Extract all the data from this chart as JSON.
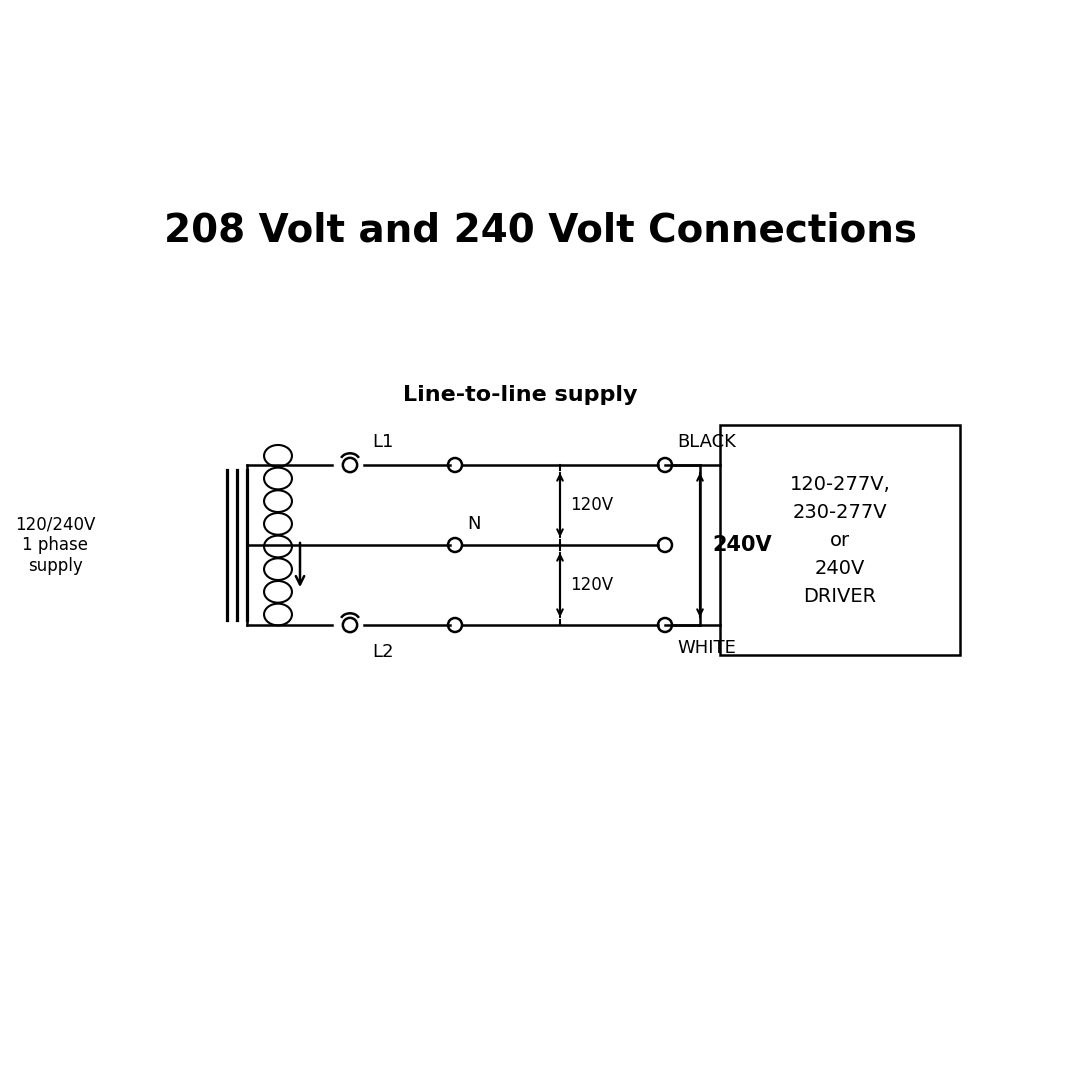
{
  "title": "208 Volt and 240 Volt Connections",
  "subtitle": "Line-to-line supply",
  "bg_color": "#ffffff",
  "line_color": "#000000",
  "title_fontsize": 28,
  "subtitle_fontsize": 16,
  "supply_label": "120/240V\n1 phase\nsupply",
  "driver_label": "120-277V,\n230-277V\nor\n240V\nDRIVER",
  "wire_labels": {
    "L1": "L1",
    "N": "N",
    "L2": "L2",
    "BLACK": "BLACK",
    "WHITE": "WHITE",
    "240V": "240V",
    "120V_top": "120V",
    "120V_bot": "120V"
  }
}
